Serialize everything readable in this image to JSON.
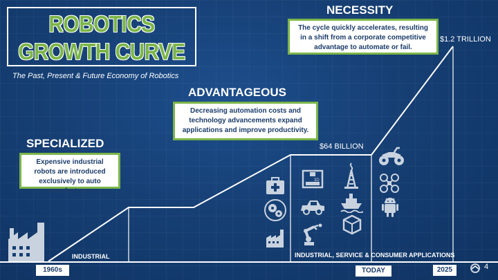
{
  "title": {
    "line1": "ROBOTICS",
    "line2": "GROWTH CURVE"
  },
  "subtitle": "The Past, Present & Future Economy of Robotics",
  "stages": {
    "specialized": {
      "heading": "SPECIALIZED",
      "note": "Expensive industrial robots are introduced exclusively to auto manufactures."
    },
    "advantageous": {
      "heading": "ADVANTAGEOUS",
      "note": "Decreasing automation costs and technology advancements expand applications and improve productivity."
    },
    "necessity": {
      "heading": "NECESSITY",
      "note": "The cycle quickly accelerates, resulting in a shift from a corporate competitive advantage to automate or fail."
    }
  },
  "values": {
    "mid": "$64 BILLION",
    "top": "$1.2 TRILLION"
  },
  "segments": {
    "industrial": "INDUSTRIAL",
    "applications": "INDUSTRIAL, SERVICE & CONSUMER APPLICATIONS"
  },
  "timeline": {
    "start": "1960s",
    "today": "TODAY",
    "end": "2025"
  },
  "page_number": "4",
  "colors": {
    "background": "#163f74",
    "accent_green": "#7bb549",
    "text_dark": "#1b3c6a",
    "white": "#ffffff"
  },
  "icons": [
    "factory-icon",
    "first-aid-icon",
    "gears-globe-icon",
    "small-factory-icon",
    "3d-printer-icon",
    "car-icon",
    "robot-arm-icon",
    "oil-rig-icon",
    "ship-icon",
    "package-icon",
    "atv-icon",
    "drone-icon",
    "android-robot-icon",
    "logo-icon"
  ]
}
